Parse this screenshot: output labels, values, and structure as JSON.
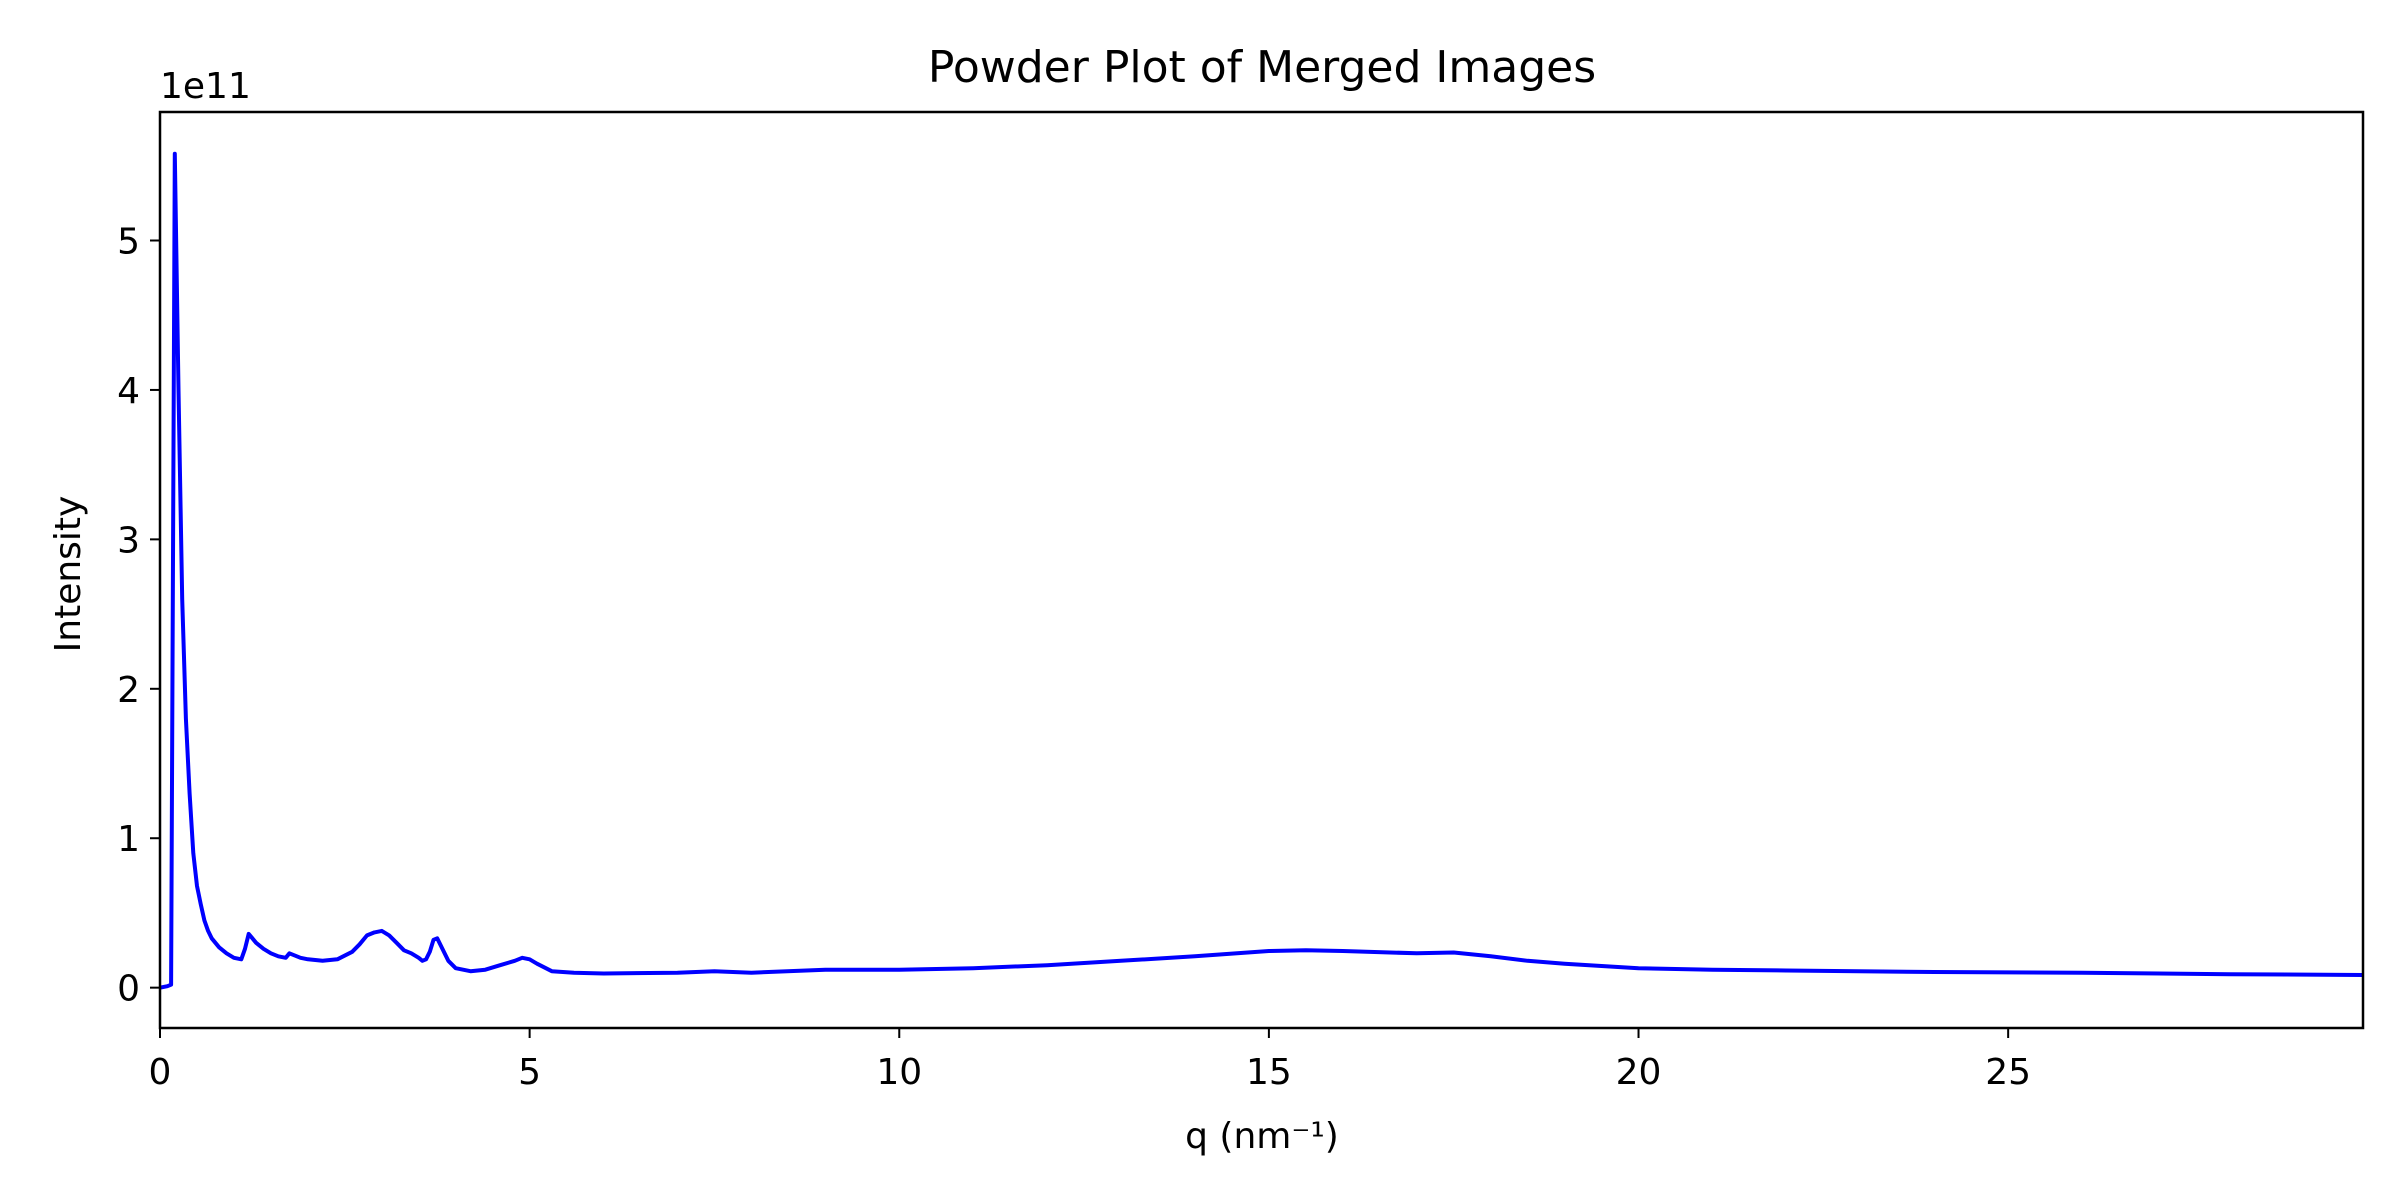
{
  "chart_data": {
    "type": "line",
    "title": "Powder Plot of Merged Images",
    "xlabel": "q (nm⁻¹)",
    "ylabel": "Intensity",
    "y_offset_label": "1e11",
    "y_scale_exponent": 11,
    "xlim": [
      0,
      29.8
    ],
    "ylim": [
      -0.27,
      5.86
    ],
    "x_ticks": [
      0,
      5,
      10,
      15,
      20,
      25
    ],
    "x_tick_labels": [
      "0",
      "5",
      "10",
      "15",
      "20",
      "25"
    ],
    "y_ticks": [
      0,
      1,
      2,
      3,
      4,
      5
    ],
    "y_tick_labels": [
      "0",
      "1",
      "2",
      "3",
      "4",
      "5"
    ],
    "grid": false,
    "legend": "none",
    "series": [
      {
        "color": "#0000ff",
        "x": [
          0,
          0.1,
          0.15,
          0.2,
          0.25,
          0.3,
          0.35,
          0.4,
          0.45,
          0.5,
          0.55,
          0.6,
          0.65,
          0.7,
          0.8,
          0.9,
          1.0,
          1.1,
          1.15,
          1.2,
          1.25,
          1.3,
          1.4,
          1.5,
          1.6,
          1.7,
          1.75,
          1.8,
          1.9,
          2.0,
          2.2,
          2.4,
          2.6,
          2.7,
          2.8,
          2.9,
          3.0,
          3.1,
          3.2,
          3.3,
          3.4,
          3.5,
          3.55,
          3.6,
          3.65,
          3.7,
          3.75,
          3.8,
          3.9,
          4.0,
          4.2,
          4.4,
          4.6,
          4.8,
          4.9,
          5.0,
          5.1,
          5.3,
          5.6,
          6.0,
          7.0,
          7.5,
          8.0,
          9.0,
          9.5,
          10.0,
          11.0,
          12.0,
          13.0,
          14.0,
          15.0,
          15.5,
          16.0,
          17.0,
          17.5,
          18.0,
          18.5,
          19.0,
          20.0,
          21.0,
          22.0,
          24.0,
          26.0,
          28.0,
          29.8
        ],
        "y": [
          0,
          0.01,
          0.02,
          5.58,
          4.0,
          2.6,
          1.8,
          1.3,
          0.9,
          0.68,
          0.56,
          0.45,
          0.38,
          0.33,
          0.27,
          0.23,
          0.2,
          0.19,
          0.26,
          0.36,
          0.33,
          0.3,
          0.26,
          0.23,
          0.21,
          0.2,
          0.23,
          0.22,
          0.2,
          0.19,
          0.18,
          0.19,
          0.24,
          0.29,
          0.35,
          0.37,
          0.38,
          0.35,
          0.3,
          0.25,
          0.23,
          0.2,
          0.18,
          0.19,
          0.24,
          0.32,
          0.33,
          0.28,
          0.18,
          0.13,
          0.11,
          0.12,
          0.15,
          0.18,
          0.2,
          0.19,
          0.16,
          0.11,
          0.1,
          0.095,
          0.1,
          0.11,
          0.1,
          0.12,
          0.12,
          0.12,
          0.13,
          0.15,
          0.18,
          0.21,
          0.245,
          0.25,
          0.245,
          0.23,
          0.235,
          0.21,
          0.18,
          0.16,
          0.13,
          0.12,
          0.115,
          0.105,
          0.1,
          0.09,
          0.085
        ]
      }
    ]
  }
}
